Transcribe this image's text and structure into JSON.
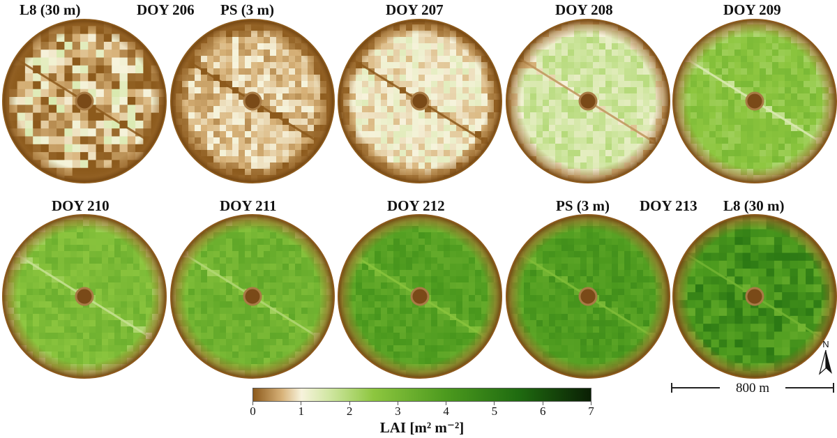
{
  "labels": {
    "l8_a": "L8 (30 m)",
    "doy206": "DOY 206",
    "ps_a": "PS (3 m)",
    "doy207": "DOY 207",
    "doy208": "DOY 208",
    "doy209": "DOY 209",
    "doy210": "DOY 210",
    "doy211": "DOY 211",
    "doy212": "DOY 212",
    "ps_b": "PS (3 m)",
    "doy213": "DOY 213",
    "l8_b": "L8 (30 m)"
  },
  "panels": [
    {
      "name": "l8-doy206",
      "mean_lai": 0.7,
      "style": "coarse"
    },
    {
      "name": "ps-doy206",
      "mean_lai": 0.7,
      "style": "fine"
    },
    {
      "name": "ps-doy207",
      "mean_lai": 1.0,
      "style": "fine"
    },
    {
      "name": "ps-doy208",
      "mean_lai": 1.6,
      "style": "fine"
    },
    {
      "name": "ps-doy209",
      "mean_lai": 2.6,
      "style": "fine"
    },
    {
      "name": "ps-doy210",
      "mean_lai": 2.9,
      "style": "fine"
    },
    {
      "name": "ps-doy211",
      "mean_lai": 3.2,
      "style": "fine"
    },
    {
      "name": "ps-doy212",
      "mean_lai": 3.8,
      "style": "fine"
    },
    {
      "name": "ps-doy213",
      "mean_lai": 4.0,
      "style": "fine"
    },
    {
      "name": "l8-doy213",
      "mean_lai": 4.3,
      "style": "coarse"
    }
  ],
  "colorbar": {
    "title": "LAI [m² m⁻²]",
    "min": 0,
    "max": 7,
    "ticks": [
      "0",
      "1",
      "2",
      "3",
      "4",
      "5",
      "6",
      "7"
    ],
    "stops": [
      {
        "value": 0,
        "color": "#8c5a1c"
      },
      {
        "value": 0.6,
        "color": "#d8b37a"
      },
      {
        "value": 1.0,
        "color": "#f7f3dc"
      },
      {
        "value": 1.6,
        "color": "#cfe6a0"
      },
      {
        "value": 2.5,
        "color": "#8dc63f"
      },
      {
        "value": 4.0,
        "color": "#4c9a1e"
      },
      {
        "value": 5.5,
        "color": "#1f6b10"
      },
      {
        "value": 7.0,
        "color": "#0a1f04"
      }
    ]
  },
  "scale_bar": {
    "text": "800 m"
  },
  "north_arrow": {
    "letter": "N"
  }
}
